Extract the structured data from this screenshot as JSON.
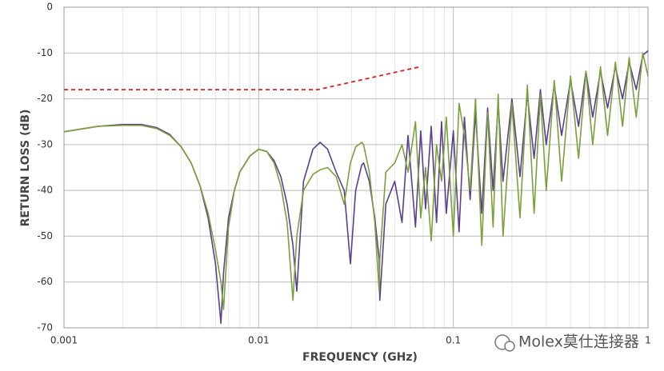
{
  "chart_data": {
    "type": "line",
    "xlabel": "FREQUENCY (GHz)",
    "ylabel": "RETURN LOSS (dB)",
    "xscale": "log",
    "xlim": [
      0.001,
      1
    ],
    "xticks": [
      0.001,
      0.01,
      0.1,
      1
    ],
    "xminorticks": [
      0.002,
      0.003,
      0.004,
      0.005,
      0.006,
      0.007,
      0.008,
      0.009,
      0.02,
      0.03,
      0.04,
      0.05,
      0.06,
      0.07,
      0.08,
      0.09,
      0.2,
      0.3,
      0.4,
      0.5,
      0.6,
      0.7,
      0.8,
      0.9
    ],
    "ylim": [
      -70,
      0
    ],
    "yticks": [
      -70,
      -60,
      -50,
      -40,
      -30,
      -20,
      -10,
      0
    ],
    "grid": true,
    "x": [
      0.001,
      0.0015,
      0.002,
      0.0025,
      0.003,
      0.0035,
      0.004,
      0.0045,
      0.005,
      0.0055,
      0.006,
      0.0064,
      0.0066,
      0.007,
      0.0075,
      0.008,
      0.009,
      0.01,
      0.011,
      0.012,
      0.013,
      0.014,
      0.015,
      0.0157,
      0.017,
      0.019,
      0.0207,
      0.0226,
      0.025,
      0.0275,
      0.0296,
      0.0315,
      0.0338,
      0.0346,
      0.037,
      0.0395,
      0.0416,
      0.0419,
      0.045,
      0.05,
      0.0545,
      0.0585,
      0.0639,
      0.068,
      0.072,
      0.077,
      0.082,
      0.087,
      0.092,
      0.1,
      0.107,
      0.114,
      0.122,
      0.13,
      0.14,
      0.15,
      0.16,
      0.17,
      0.18,
      0.2,
      0.22,
      0.24,
      0.26,
      0.28,
      0.3,
      0.33,
      0.36,
      0.4,
      0.44,
      0.48,
      0.52,
      0.57,
      0.62,
      0.68,
      0.74,
      0.8,
      0.87,
      0.94,
      1
    ],
    "series": [
      {
        "color": "#5b3f8f",
        "values": [
          -27.2,
          -26,
          -25.6,
          -25.6,
          -26.3,
          -27.8,
          -30.5,
          -34,
          -39,
          -46,
          -56,
          -69,
          -58,
          -46,
          -40,
          -36,
          -32.5,
          -31,
          -31.5,
          -33.5,
          -37,
          -43,
          -52,
          -62,
          -38,
          -31,
          -29.5,
          -31,
          -36,
          -40,
          -56,
          -40,
          -34.5,
          -34,
          -38,
          -46,
          -55,
          -64,
          -43,
          -38,
          -47,
          -28,
          -48,
          -27,
          -44,
          -26,
          -47,
          -25,
          -45,
          -27,
          -49,
          -24,
          -42,
          -23,
          -45,
          -22,
          -40,
          -21,
          -38,
          -20,
          -37,
          -19,
          -33,
          -18,
          -30,
          -17,
          -28,
          -16,
          -26,
          -14,
          -24,
          -14,
          -22,
          -13,
          -20,
          -12,
          -18,
          -10.5,
          -9.5
        ]
      },
      {
        "color": "#7aa03c",
        "values": [
          -27.2,
          -26,
          -25.8,
          -25.8,
          -26.5,
          -28,
          -30.5,
          -34,
          -39,
          -45,
          -53,
          -60,
          -66,
          -48,
          -40,
          -36,
          -32.5,
          -31,
          -31.5,
          -34,
          -39,
          -47,
          -64,
          -50,
          -40,
          -36.5,
          -35.5,
          -35,
          -37,
          -43,
          -34,
          -30.5,
          -29.5,
          -30,
          -36,
          -47,
          -62,
          -55,
          -36,
          -34,
          -30,
          -36,
          -25,
          -46,
          -35,
          -51,
          -30,
          -38,
          -24,
          -50,
          -21,
          -28,
          -40,
          -20,
          -52,
          -23,
          -48,
          -19,
          -50,
          -21,
          -46,
          -17,
          -45,
          -19,
          -40,
          -16,
          -38,
          -15,
          -33,
          -14,
          -30,
          -13,
          -28,
          -12,
          -26,
          -11,
          -24,
          -10,
          -15
        ]
      },
      {
        "color": "#e02020",
        "dashed": true,
        "x": [
          0.001,
          0.0201,
          0.0675
        ],
        "values": [
          -18,
          -18,
          -13
        ]
      }
    ],
    "watermark": "Molex莫仕连接器"
  }
}
